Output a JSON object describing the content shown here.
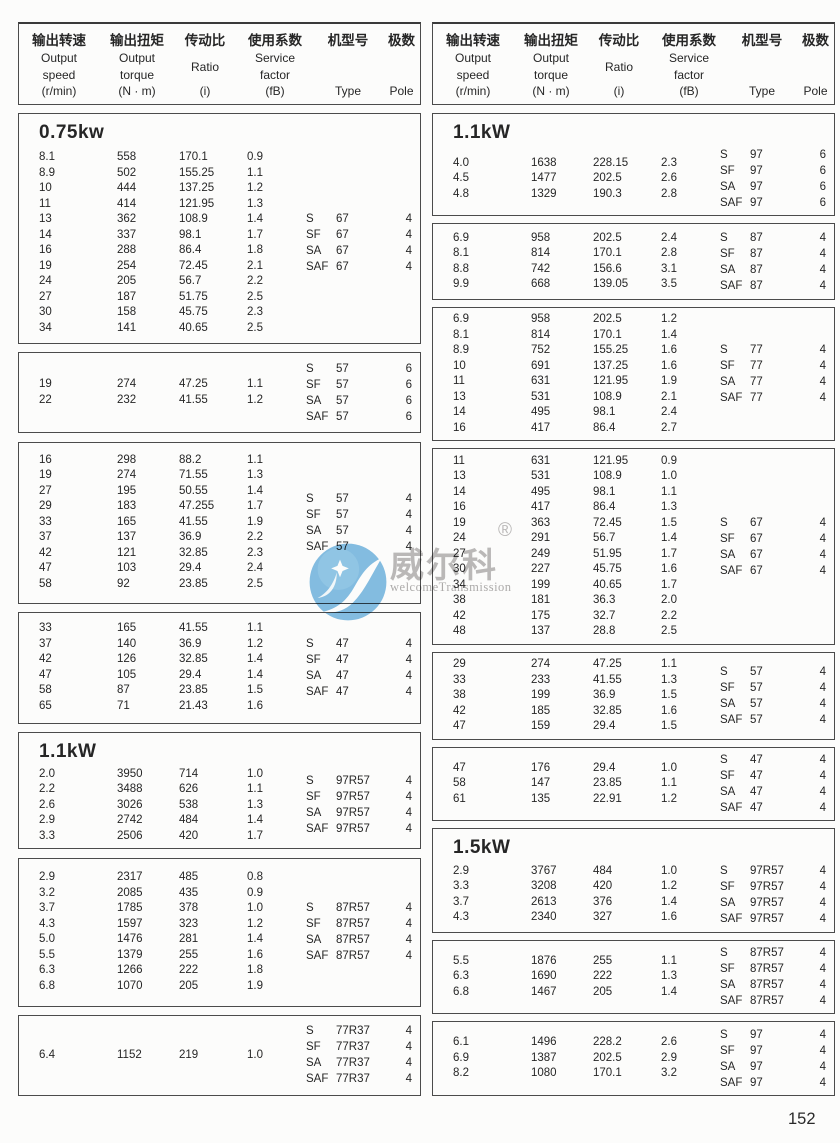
{
  "page": {
    "number": "152"
  },
  "watermark": {
    "brand": "威尔科",
    "registered": "®",
    "subtitle": "welcomeTransmission",
    "logo_color": "#6fb3df"
  },
  "header": {
    "cells": [
      {
        "name": "output-speed",
        "lines": [
          "输出转速",
          "Output",
          "speed",
          "(r/min)"
        ]
      },
      {
        "name": "output-torque",
        "lines": [
          "输出扭矩",
          "Output",
          "torque",
          "(N · m)"
        ]
      },
      {
        "name": "ratio",
        "lines": [
          "传动比",
          "Ratio",
          "(i)"
        ]
      },
      {
        "name": "service-factor",
        "lines": [
          "使用系数",
          "Service",
          "factor",
          "(fB)"
        ]
      },
      {
        "name": "type",
        "lines": [
          "机型号",
          "Type"
        ]
      },
      {
        "name": "pole",
        "lines": [
          "极数",
          "Pole"
        ]
      }
    ]
  },
  "columns": [
    {
      "side": "left",
      "boxes": [
        {
          "title": "0.75kw",
          "rows": [
            [
              "8.1",
              "558",
              "170.1",
              "0.9"
            ],
            [
              "8.9",
              "502",
              "155.25",
              "1.1"
            ],
            [
              "10",
              "444",
              "137.25",
              "1.2"
            ],
            [
              "11",
              "414",
              "121.95",
              "1.3"
            ],
            [
              "13",
              "362",
              "108.9",
              "1.4"
            ],
            [
              "14",
              "337",
              "98.1",
              "1.7"
            ],
            [
              "16",
              "288",
              "86.4",
              "1.8"
            ],
            [
              "19",
              "254",
              "72.45",
              "2.1"
            ],
            [
              "24",
              "205",
              "56.7",
              "2.2"
            ],
            [
              "27",
              "187",
              "51.75",
              "2.5"
            ],
            [
              "30",
              "158",
              "45.75",
              "2.3"
            ],
            [
              "34",
              "141",
              "40.65",
              "2.5"
            ]
          ],
          "types": [
            {
              "prefix": "S",
              "size": "67",
              "pole": "4"
            },
            {
              "prefix": "SF",
              "size": "67",
              "pole": "4"
            },
            {
              "prefix": "SA",
              "size": "67",
              "pole": "4"
            },
            {
              "prefix": "SAF",
              "size": "67",
              "pole": "4"
            }
          ]
        },
        {
          "rows": [
            [
              "19",
              "274",
              "47.25",
              "1.1"
            ],
            [
              "22",
              "232",
              "41.55",
              "1.2"
            ]
          ],
          "types": [
            {
              "prefix": "S",
              "size": "57",
              "pole": "6"
            },
            {
              "prefix": "SF",
              "size": "57",
              "pole": "6"
            },
            {
              "prefix": "SA",
              "size": "57",
              "pole": "6"
            },
            {
              "prefix": "SAF",
              "size": "57",
              "pole": "6"
            }
          ]
        },
        {
          "rows": [
            [
              "16",
              "298",
              "88.2",
              "1.1"
            ],
            [
              "19",
              "274",
              "71.55",
              "1.3"
            ],
            [
              "27",
              "195",
              "50.55",
              "1.4"
            ],
            [
              "29",
              "183",
              "47.255",
              "1.7"
            ],
            [
              "33",
              "165",
              "41.55",
              "1.9"
            ],
            [
              "37",
              "137",
              "36.9",
              "2.2"
            ],
            [
              "42",
              "121",
              "32.85",
              "2.3"
            ],
            [
              "47",
              "103",
              "29.4",
              "2.4"
            ],
            [
              "58",
              "92",
              "23.85",
              "2.5"
            ]
          ],
          "types": [
            {
              "prefix": "S",
              "size": "57",
              "pole": "4"
            },
            {
              "prefix": "SF",
              "size": "57",
              "pole": "4"
            },
            {
              "prefix": "SA",
              "size": "57",
              "pole": "4"
            },
            {
              "prefix": "SAF",
              "size": "57",
              "pole": "4"
            }
          ]
        },
        {
          "rows": [
            [
              "33",
              "165",
              "41.55",
              "1.1"
            ],
            [
              "37",
              "140",
              "36.9",
              "1.2"
            ],
            [
              "42",
              "126",
              "32.85",
              "1.4"
            ],
            [
              "47",
              "105",
              "29.4",
              "1.4"
            ],
            [
              "58",
              "87",
              "23.85",
              "1.5"
            ],
            [
              "65",
              "71",
              "21.43",
              "1.6"
            ]
          ],
          "types": [
            {
              "prefix": "S",
              "size": "47",
              "pole": "4"
            },
            {
              "prefix": "SF",
              "size": "47",
              "pole": "4"
            },
            {
              "prefix": "SA",
              "size": "47",
              "pole": "4"
            },
            {
              "prefix": "SAF",
              "size": "47",
              "pole": "4"
            }
          ]
        },
        {
          "title": "1.1kW",
          "rows": [
            [
              "2.0",
              "3950",
              "714",
              "1.0"
            ],
            [
              "2.2",
              "3488",
              "626",
              "1.1"
            ],
            [
              "2.6",
              "3026",
              "538",
              "1.3"
            ],
            [
              "2.9",
              "2742",
              "484",
              "1.4"
            ],
            [
              "3.3",
              "2506",
              "420",
              "1.7"
            ]
          ],
          "types": [
            {
              "prefix": "S",
              "size": "97R57",
              "pole": "4"
            },
            {
              "prefix": "SF",
              "size": "97R57",
              "pole": "4"
            },
            {
              "prefix": "SA",
              "size": "97R57",
              "pole": "4"
            },
            {
              "prefix": "SAF",
              "size": "97R57",
              "pole": "4"
            }
          ]
        },
        {
          "rows": [
            [
              "2.9",
              "2317",
              "485",
              "0.8"
            ],
            [
              "3.2",
              "2085",
              "435",
              "0.9"
            ],
            [
              "3.7",
              "1785",
              "378",
              "1.0"
            ],
            [
              "4.3",
              "1597",
              "323",
              "1.2"
            ],
            [
              "5.0",
              "1476",
              "281",
              "1.4"
            ],
            [
              "5.5",
              "1379",
              "255",
              "1.6"
            ],
            [
              "6.3",
              "1266",
              "222",
              "1.8"
            ],
            [
              "6.8",
              "1070",
              "205",
              "1.9"
            ]
          ],
          "types": [
            {
              "prefix": "S",
              "size": "87R57",
              "pole": "4"
            },
            {
              "prefix": "SF",
              "size": "87R57",
              "pole": "4"
            },
            {
              "prefix": "SA",
              "size": "87R57",
              "pole": "4"
            },
            {
              "prefix": "SAF",
              "size": "87R57",
              "pole": "4"
            }
          ]
        },
        {
          "rows": [
            [
              "6.4",
              "1152",
              "219",
              "1.0"
            ]
          ],
          "types": [
            {
              "prefix": "S",
              "size": "77R37",
              "pole": "4"
            },
            {
              "prefix": "SF",
              "size": "77R37",
              "pole": "4"
            },
            {
              "prefix": "SA",
              "size": "77R37",
              "pole": "4"
            },
            {
              "prefix": "SAF",
              "size": "77R37",
              "pole": "4"
            }
          ]
        }
      ]
    },
    {
      "side": "right",
      "boxes": [
        {
          "title": "1.1kW",
          "rows": [
            [
              "4.0",
              "1638",
              "228.15",
              "2.3"
            ],
            [
              "4.5",
              "1477",
              "202.5",
              "2.6"
            ],
            [
              "4.8",
              "1329",
              "190.3",
              "2.8"
            ]
          ],
          "types": [
            {
              "prefix": "S",
              "size": "97",
              "pole": "6"
            },
            {
              "prefix": "SF",
              "size": "97",
              "pole": "6"
            },
            {
              "prefix": "SA",
              "size": "97",
              "pole": "6"
            },
            {
              "prefix": "SAF",
              "size": "97",
              "pole": "6"
            }
          ]
        },
        {
          "rows": [
            [
              "6.9",
              "958",
              "202.5",
              "2.4"
            ],
            [
              "8.1",
              "814",
              "170.1",
              "2.8"
            ],
            [
              "8.8",
              "742",
              "156.6",
              "3.1"
            ],
            [
              "9.9",
              "668",
              "139.05",
              "3.5"
            ]
          ],
          "types": [
            {
              "prefix": "S",
              "size": "87",
              "pole": "4"
            },
            {
              "prefix": "SF",
              "size": "87",
              "pole": "4"
            },
            {
              "prefix": "SA",
              "size": "87",
              "pole": "4"
            },
            {
              "prefix": "SAF",
              "size": "87",
              "pole": "4"
            }
          ]
        },
        {
          "rows": [
            [
              "6.9",
              "958",
              "202.5",
              "1.2"
            ],
            [
              "8.1",
              "814",
              "170.1",
              "1.4"
            ],
            [
              "8.9",
              "752",
              "155.25",
              "1.6"
            ],
            [
              "10",
              "691",
              "137.25",
              "1.6"
            ],
            [
              "11",
              "631",
              "121.95",
              "1.9"
            ],
            [
              "13",
              "531",
              "108.9",
              "2.1"
            ],
            [
              "14",
              "495",
              "98.1",
              "2.4"
            ],
            [
              "16",
              "417",
              "86.4",
              "2.7"
            ]
          ],
          "types": [
            {
              "prefix": "S",
              "size": "77",
              "pole": "4"
            },
            {
              "prefix": "SF",
              "size": "77",
              "pole": "4"
            },
            {
              "prefix": "SA",
              "size": "77",
              "pole": "4"
            },
            {
              "prefix": "SAF",
              "size": "77",
              "pole": "4"
            }
          ]
        },
        {
          "rows": [
            [
              "11",
              "631",
              "121.95",
              "0.9"
            ],
            [
              "13",
              "531",
              "108.9",
              "1.0"
            ],
            [
              "14",
              "495",
              "98.1",
              "1.1"
            ],
            [
              "16",
              "417",
              "86.4",
              "1.3"
            ],
            [
              "19",
              "363",
              "72.45",
              "1.5"
            ],
            [
              "24",
              "291",
              "56.7",
              "1.4"
            ],
            [
              "27",
              "249",
              "51.95",
              "1.7"
            ],
            [
              "30",
              "227",
              "45.75",
              "1.6"
            ],
            [
              "34",
              "199",
              "40.65",
              "1.7"
            ],
            [
              "38",
              "181",
              "36.3",
              "2.0"
            ],
            [
              "42",
              "175",
              "32.7",
              "2.2"
            ],
            [
              "48",
              "137",
              "28.8",
              "2.5"
            ]
          ],
          "types": [
            {
              "prefix": "S",
              "size": "67",
              "pole": "4"
            },
            {
              "prefix": "SF",
              "size": "67",
              "pole": "4"
            },
            {
              "prefix": "SA",
              "size": "67",
              "pole": "4"
            },
            {
              "prefix": "SAF",
              "size": "67",
              "pole": "4"
            }
          ]
        },
        {
          "rows": [
            [
              "29",
              "274",
              "47.25",
              "1.1"
            ],
            [
              "33",
              "233",
              "41.55",
              "1.3"
            ],
            [
              "38",
              "199",
              "36.9",
              "1.5"
            ],
            [
              "42",
              "185",
              "32.85",
              "1.6"
            ],
            [
              "47",
              "159",
              "29.4",
              "1.5"
            ]
          ],
          "types": [
            {
              "prefix": "S",
              "size": "57",
              "pole": "4"
            },
            {
              "prefix": "SF",
              "size": "57",
              "pole": "4"
            },
            {
              "prefix": "SA",
              "size": "57",
              "pole": "4"
            },
            {
              "prefix": "SAF",
              "size": "57",
              "pole": "4"
            }
          ]
        },
        {
          "rows": [
            [
              "47",
              "176",
              "29.4",
              "1.0"
            ],
            [
              "58",
              "147",
              "23.85",
              "1.1"
            ],
            [
              "61",
              "135",
              "22.91",
              "1.2"
            ]
          ],
          "types": [
            {
              "prefix": "S",
              "size": "47",
              "pole": "4"
            },
            {
              "prefix": "SF",
              "size": "47",
              "pole": "4"
            },
            {
              "prefix": "SA",
              "size": "47",
              "pole": "4"
            },
            {
              "prefix": "SAF",
              "size": "47",
              "pole": "4"
            }
          ]
        },
        {
          "title": "1.5kW",
          "rows": [
            [
              "2.9",
              "3767",
              "484",
              "1.0"
            ],
            [
              "3.3",
              "3208",
              "420",
              "1.2"
            ],
            [
              "3.7",
              "2613",
              "376",
              "1.4"
            ],
            [
              "4.3",
              "2340",
              "327",
              "1.6"
            ]
          ],
          "types": [
            {
              "prefix": "S",
              "size": "97R57",
              "pole": "4"
            },
            {
              "prefix": "SF",
              "size": "97R57",
              "pole": "4"
            },
            {
              "prefix": "SA",
              "size": "97R57",
              "pole": "4"
            },
            {
              "prefix": "SAF",
              "size": "97R57",
              "pole": "4"
            }
          ]
        },
        {
          "rows": [
            [
              "5.5",
              "1876",
              "255",
              "1.1"
            ],
            [
              "6.3",
              "1690",
              "222",
              "1.3"
            ],
            [
              "6.8",
              "1467",
              "205",
              "1.4"
            ]
          ],
          "types": [
            {
              "prefix": "S",
              "size": "87R57",
              "pole": "4"
            },
            {
              "prefix": "SF",
              "size": "87R57",
              "pole": "4"
            },
            {
              "prefix": "SA",
              "size": "87R57",
              "pole": "4"
            },
            {
              "prefix": "SAF",
              "size": "87R57",
              "pole": "4"
            }
          ]
        },
        {
          "rows": [
            [
              "6.1",
              "1496",
              "228.2",
              "2.6"
            ],
            [
              "6.9",
              "1387",
              "202.5",
              "2.9"
            ],
            [
              "8.2",
              "1080",
              "170.1",
              "3.2"
            ]
          ],
          "types": [
            {
              "prefix": "S",
              "size": "97",
              "pole": "4"
            },
            {
              "prefix": "SF",
              "size": "97",
              "pole": "4"
            },
            {
              "prefix": "SA",
              "size": "97",
              "pole": "4"
            },
            {
              "prefix": "SAF",
              "size": "97",
              "pole": "4"
            }
          ]
        }
      ]
    }
  ]
}
